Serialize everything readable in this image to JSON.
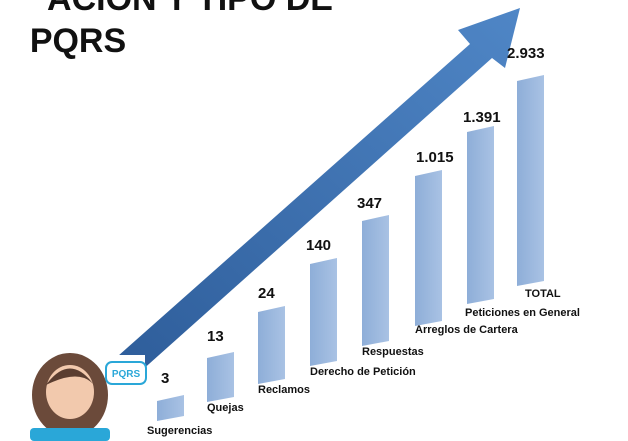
{
  "title": {
    "line1": "ACIÓN Y TIPO DE",
    "line2": "PQRS"
  },
  "icon_label": "PQRS",
  "items": [
    {
      "label": "Sugerencias",
      "value": "3"
    },
    {
      "label": "Quejas",
      "value": "13"
    },
    {
      "label": "Reclamos",
      "value": "24"
    },
    {
      "label": "Derecho de Petición",
      "value": "140"
    },
    {
      "label": "Respuestas",
      "value": "347"
    },
    {
      "label": "Arreglos de Cartera",
      "value": "1.015"
    },
    {
      "label": "Peticiones en General",
      "value": "1.391"
    },
    {
      "label": "TOTAL",
      "value": "2.933"
    }
  ]
}
